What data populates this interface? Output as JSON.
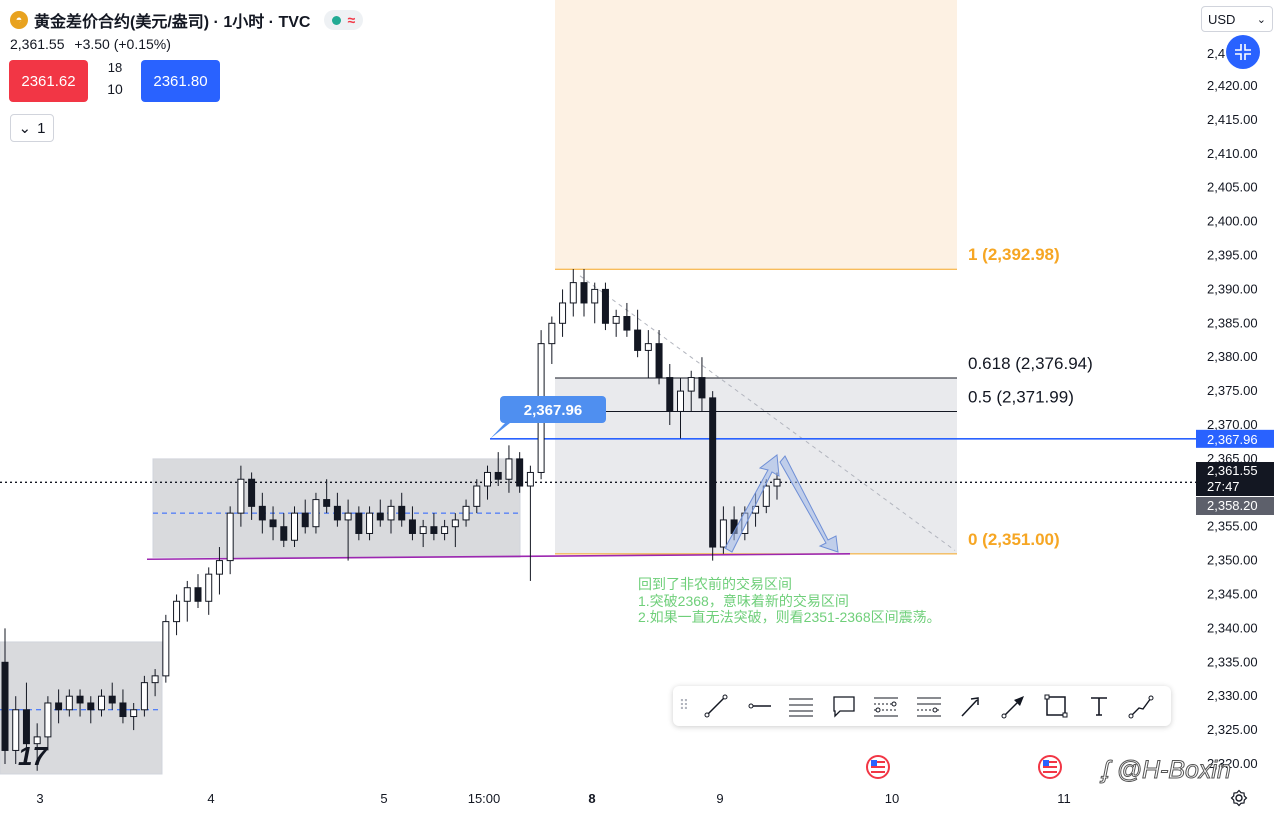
{
  "header": {
    "symbol_title": "黄金差价合约(美元/盎司) · 1小时 · TVC",
    "icon": "gold-symbol-icon",
    "status_icons": [
      "market-open-dot-icon",
      "delayed-data-wave-icon"
    ]
  },
  "quote": {
    "last": "2,361.55",
    "change": "+3.50 (+0.15%)"
  },
  "trade": {
    "sell_price": "2361.62",
    "spread_top": "18",
    "spread_bottom": "10",
    "buy_price": "2361.80"
  },
  "collapse": {
    "label": "1"
  },
  "currency": {
    "label": "USD"
  },
  "price_axis": {
    "top_partial": "2,4",
    "ticks": [
      "2,420.00",
      "2,415.00",
      "2,410.00",
      "2,405.00",
      "2,400.00",
      "2,395.00",
      "2,390.00",
      "2,385.00",
      "2,380.00",
      "2,375.00",
      "2,370.00",
      "2,365.00",
      "2,360.00",
      "2,355.00",
      "2,350.00",
      "2,345.00",
      "2,340.00",
      "2,335.00",
      "2,330.00",
      "2,325.00",
      "2,320.00"
    ],
    "range": [
      2318,
      2428
    ],
    "badges": {
      "hline": "2,367.96",
      "last": "2,361.55",
      "countdown": "27:47",
      "low_marker": "2,358.20"
    }
  },
  "time_axis": {
    "labels": [
      "3",
      "4",
      "5",
      "15:00",
      "8",
      "9",
      "10",
      "11"
    ],
    "bold": [
      "8"
    ]
  },
  "fib": {
    "levels": [
      {
        "label": "1 (2,392.98)",
        "value": 2392.98,
        "color": "#f6a623"
      },
      {
        "label": "0.618 (2,376.94)",
        "value": 2376.94,
        "color": "#131722"
      },
      {
        "label": "0.5 (2,371.99)",
        "value": 2371.99,
        "color": "#131722"
      },
      {
        "label": "0 (2,351.00)",
        "value": 2351.0,
        "color": "#f6a623"
      }
    ]
  },
  "callout": {
    "label": "2,367.96",
    "value": 2367.96
  },
  "annotation": {
    "line1": "回到了非农前的交易区间",
    "line2": "1.突破2368，意味着新的交易区间",
    "line3": "2.如果一直无法突破，则看2351-2368区间震荡。",
    "color": "#6fcf7a"
  },
  "drawing_toolbar": {
    "tools": [
      "trend-line-icon",
      "horizontal-ray-icon",
      "parallel-channel-icon",
      "callout-icon",
      "fib-retracement-icon",
      "fib-extension-icon",
      "arrow-icon",
      "arrow-marker-icon",
      "rectangle-icon",
      "text-icon",
      "path-icon"
    ],
    "grip": "drag-handle-icon"
  },
  "watermark": {
    "text": "@H-Boxin",
    "logo": "logo-icon"
  },
  "tv_logo": {
    "text": "17",
    "icon": "tradingview-logo-icon"
  },
  "events": {
    "icons": [
      "us-flag-event-icon",
      "us-flag-event-icon"
    ]
  },
  "colors": {
    "accent": "#2962ff",
    "sell": "#f23645",
    "fib_zone": "#fdf1e3",
    "range_box": "#d1d4dc",
    "support_line": "#9c27b0",
    "candle_dark": "#131722"
  },
  "candles": [
    {
      "o": 2335,
      "h": 2340,
      "l": 2320,
      "c": 2322
    },
    {
      "o": 2322,
      "h": 2330,
      "l": 2320,
      "c": 2328
    },
    {
      "o": 2328,
      "h": 2332,
      "l": 2320,
      "c": 2323
    },
    {
      "o": 2323,
      "h": 2326,
      "l": 2319,
      "c": 2324
    },
    {
      "o": 2324,
      "h": 2330,
      "l": 2322,
      "c": 2329
    },
    {
      "o": 2329,
      "h": 2331,
      "l": 2326,
      "c": 2328
    },
    {
      "o": 2328,
      "h": 2331,
      "l": 2327,
      "c": 2330
    },
    {
      "o": 2330,
      "h": 2331,
      "l": 2327,
      "c": 2329
    },
    {
      "o": 2329,
      "h": 2330,
      "l": 2326,
      "c": 2328
    },
    {
      "o": 2328,
      "h": 2331,
      "l": 2327,
      "c": 2330
    },
    {
      "o": 2330,
      "h": 2332,
      "l": 2328,
      "c": 2329
    },
    {
      "o": 2329,
      "h": 2331,
      "l": 2326,
      "c": 2327
    },
    {
      "o": 2327,
      "h": 2329,
      "l": 2325,
      "c": 2328
    },
    {
      "o": 2328,
      "h": 2333,
      "l": 2327,
      "c": 2332
    },
    {
      "o": 2332,
      "h": 2334,
      "l": 2330,
      "c": 2333
    },
    {
      "o": 2333,
      "h": 2342,
      "l": 2332,
      "c": 2341
    },
    {
      "o": 2341,
      "h": 2345,
      "l": 2339,
      "c": 2344
    },
    {
      "o": 2344,
      "h": 2347,
      "l": 2341,
      "c": 2346
    },
    {
      "o": 2346,
      "h": 2348,
      "l": 2343,
      "c": 2344
    },
    {
      "o": 2344,
      "h": 2349,
      "l": 2342,
      "c": 2348
    },
    {
      "o": 2348,
      "h": 2352,
      "l": 2345,
      "c": 2350
    },
    {
      "o": 2350,
      "h": 2358,
      "l": 2348,
      "c": 2357
    },
    {
      "o": 2357,
      "h": 2364,
      "l": 2355,
      "c": 2362
    },
    {
      "o": 2362,
      "h": 2363,
      "l": 2356,
      "c": 2358
    },
    {
      "o": 2358,
      "h": 2360,
      "l": 2354,
      "c": 2356
    },
    {
      "o": 2356,
      "h": 2358,
      "l": 2353,
      "c": 2355
    },
    {
      "o": 2355,
      "h": 2357,
      "l": 2352,
      "c": 2353
    },
    {
      "o": 2353,
      "h": 2358,
      "l": 2352,
      "c": 2357
    },
    {
      "o": 2357,
      "h": 2359,
      "l": 2354,
      "c": 2355
    },
    {
      "o": 2355,
      "h": 2360,
      "l": 2354,
      "c": 2359
    },
    {
      "o": 2359,
      "h": 2362,
      "l": 2357,
      "c": 2358
    },
    {
      "o": 2358,
      "h": 2360,
      "l": 2355,
      "c": 2356
    },
    {
      "o": 2356,
      "h": 2359,
      "l": 2350,
      "c": 2357
    },
    {
      "o": 2357,
      "h": 2358,
      "l": 2353,
      "c": 2354
    },
    {
      "o": 2354,
      "h": 2358,
      "l": 2353,
      "c": 2357
    },
    {
      "o": 2357,
      "h": 2359,
      "l": 2355,
      "c": 2356
    },
    {
      "o": 2356,
      "h": 2359,
      "l": 2354,
      "c": 2358
    },
    {
      "o": 2358,
      "h": 2360,
      "l": 2355,
      "c": 2356
    },
    {
      "o": 2356,
      "h": 2358,
      "l": 2353,
      "c": 2354
    },
    {
      "o": 2354,
      "h": 2356,
      "l": 2352,
      "c": 2355
    },
    {
      "o": 2355,
      "h": 2357,
      "l": 2353,
      "c": 2354
    },
    {
      "o": 2354,
      "h": 2356,
      "l": 2353,
      "c": 2355
    },
    {
      "o": 2355,
      "h": 2357,
      "l": 2352,
      "c": 2356
    },
    {
      "o": 2356,
      "h": 2359,
      "l": 2355,
      "c": 2358
    },
    {
      "o": 2358,
      "h": 2362,
      "l": 2357,
      "c": 2361
    },
    {
      "o": 2361,
      "h": 2364,
      "l": 2359,
      "c": 2363
    },
    {
      "o": 2363,
      "h": 2366,
      "l": 2361,
      "c": 2362
    },
    {
      "o": 2362,
      "h": 2367,
      "l": 2360,
      "c": 2365
    },
    {
      "o": 2365,
      "h": 2366,
      "l": 2360,
      "c": 2361
    },
    {
      "o": 2361,
      "h": 2364,
      "l": 2347,
      "c": 2363
    },
    {
      "o": 2363,
      "h": 2384,
      "l": 2362,
      "c": 2382
    },
    {
      "o": 2382,
      "h": 2386,
      "l": 2379,
      "c": 2385
    },
    {
      "o": 2385,
      "h": 2390,
      "l": 2383,
      "c": 2388
    },
    {
      "o": 2388,
      "h": 2393,
      "l": 2386,
      "c": 2391
    },
    {
      "o": 2391,
      "h": 2393,
      "l": 2386,
      "c": 2388
    },
    {
      "o": 2388,
      "h": 2391,
      "l": 2385,
      "c": 2390
    },
    {
      "o": 2390,
      "h": 2391,
      "l": 2384,
      "c": 2385
    },
    {
      "o": 2385,
      "h": 2387,
      "l": 2383,
      "c": 2386
    },
    {
      "o": 2386,
      "h": 2388,
      "l": 2383,
      "c": 2384
    },
    {
      "o": 2384,
      "h": 2387,
      "l": 2380,
      "c": 2381
    },
    {
      "o": 2381,
      "h": 2384,
      "l": 2377,
      "c": 2382
    },
    {
      "o": 2382,
      "h": 2384,
      "l": 2376,
      "c": 2377
    },
    {
      "o": 2377,
      "h": 2379,
      "l": 2370,
      "c": 2372
    },
    {
      "o": 2372,
      "h": 2377,
      "l": 2368,
      "c": 2375
    },
    {
      "o": 2375,
      "h": 2378,
      "l": 2372,
      "c": 2377
    },
    {
      "o": 2377,
      "h": 2380,
      "l": 2372,
      "c": 2374
    },
    {
      "o": 2374,
      "h": 2375,
      "l": 2350,
      "c": 2352
    },
    {
      "o": 2352,
      "h": 2358,
      "l": 2351,
      "c": 2356
    },
    {
      "o": 2356,
      "h": 2358,
      "l": 2353,
      "c": 2354
    },
    {
      "o": 2354,
      "h": 2358,
      "l": 2353,
      "c": 2357
    },
    {
      "o": 2357,
      "h": 2360,
      "l": 2355,
      "c": 2358
    },
    {
      "o": 2358,
      "h": 2362,
      "l": 2357,
      "c": 2361
    },
    {
      "o": 2361,
      "h": 2363,
      "l": 2359,
      "c": 2362
    }
  ]
}
